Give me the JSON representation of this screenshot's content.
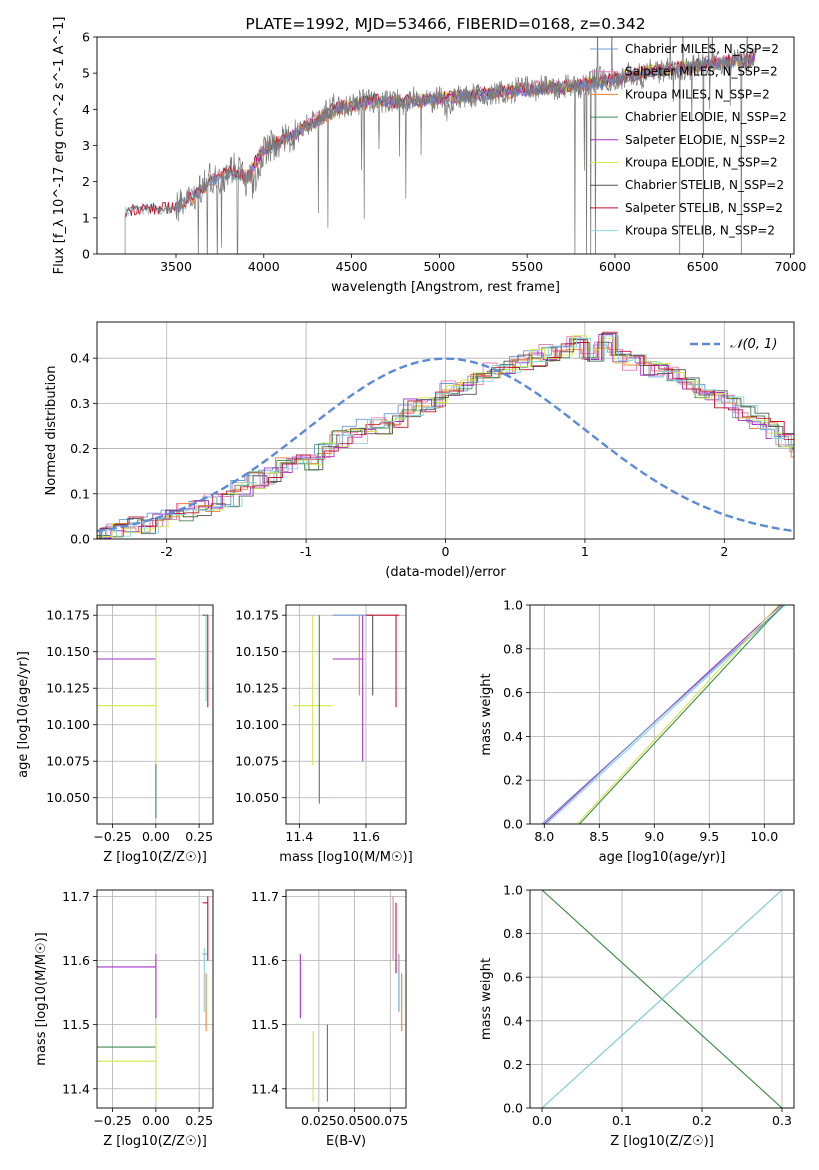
{
  "colors": {
    "chabrier_miles": "#6f9bd6",
    "salpeter_miles": "#e57ab8",
    "kroupa_miles": "#f07f2e",
    "chabrier_elodie": "#3d8a57",
    "salpeter_elodie": "#a331c9",
    "kroupa_elodie": "#d2e84a",
    "chabrier_stelib": "#555555",
    "salpeter_stelib": "#c0142c",
    "kroupa_stelib": "#87d4da",
    "normal_curve": "#5b8bd8",
    "grid": "#b0b0b0"
  },
  "chart_data": [
    {
      "id": "spectrum",
      "type": "line",
      "title": "PLATE=1992, MJD=53466, FIBERID=0168, z=0.342",
      "xlabel": "wavelength [Angstrom, rest frame]",
      "ylabel": "Flux [f_λ 10^-17 erg cm^-2 s^-1 A^-1]",
      "xlim": [
        3050,
        7020
      ],
      "ylim": [
        0,
        6
      ],
      "xticks": [
        3500,
        4000,
        4500,
        5000,
        5500,
        6000,
        6500,
        7000
      ],
      "yticks": [
        0,
        1,
        2,
        3,
        4,
        5,
        6
      ],
      "grid": false,
      "legend_position": "top-right",
      "legend": [
        {
          "key": "chabrier_miles",
          "label": "Chabrier MILES, N_SSP=2"
        },
        {
          "key": "salpeter_miles",
          "label": "Salpeter MILES, N_SSP=2"
        },
        {
          "key": "kroupa_miles",
          "label": "Kroupa MILES, N_SSP=2"
        },
        {
          "key": "chabrier_elodie",
          "label": "Chabrier ELODIE, N_SSP=2"
        },
        {
          "key": "salpeter_elodie",
          "label": "Salpeter ELODIE, N_SSP=2"
        },
        {
          "key": "kroupa_elodie",
          "label": "Kroupa ELODIE, N_SSP=2"
        },
        {
          "key": "chabrier_stelib",
          "label": "Chabrier STELIB, N_SSP=2"
        },
        {
          "key": "salpeter_stelib",
          "label": "Salpeter STELIB, N_SSP=2"
        },
        {
          "key": "kroupa_stelib",
          "label": "Kroupa STELIB, N_SSP=2"
        }
      ],
      "data_series": {
        "color_key": "chabrier_stelib",
        "x": [
          3210,
          3230,
          3260,
          3300,
          3350,
          3400,
          3450,
          3500,
          3550,
          3600,
          3650,
          3700,
          3750,
          3800,
          3850,
          3900,
          3950,
          4000,
          4050,
          4100,
          4150,
          4200,
          4250,
          4300,
          4350,
          4400,
          4450,
          4500,
          4550,
          4600,
          4650,
          4700,
          4750,
          4800,
          4850,
          4900,
          4950,
          5000,
          5050,
          5100,
          5150,
          5200,
          5250,
          5300,
          5350,
          5400,
          5450,
          5500,
          5550,
          5600,
          5650,
          5700,
          5750,
          5800,
          5850,
          5900,
          5950,
          6000,
          6050,
          6100,
          6150,
          6200,
          6250,
          6300,
          6350,
          6400,
          6450,
          6500,
          6550,
          6600,
          6650,
          6700,
          6750,
          6800
        ],
        "y": [
          1.05,
          1.25,
          1.3,
          1.25,
          1.3,
          1.25,
          1.2,
          1.3,
          1.4,
          1.6,
          1.9,
          2.1,
          2.0,
          2.3,
          2.5,
          2.0,
          1.9,
          2.9,
          3.0,
          3.1,
          3.2,
          3.4,
          3.6,
          3.7,
          3.9,
          4.1,
          4.0,
          4.1,
          4.2,
          4.3,
          4.1,
          4.2,
          4.3,
          4.1,
          4.3,
          4.2,
          4.2,
          4.3,
          4.1,
          4.4,
          4.3,
          4.4,
          4.3,
          4.4,
          4.5,
          4.4,
          4.6,
          4.6,
          4.5,
          4.7,
          4.5,
          4.6,
          4.7,
          4.6,
          4.7,
          4.9,
          4.8,
          4.8,
          4.9,
          5.0,
          4.9,
          5.1,
          5.0,
          5.2,
          5.1,
          5.1,
          5.2,
          5.3,
          5.2,
          5.3,
          5.2,
          5.4,
          5.3,
          5.4
        ]
      },
      "model_series": {
        "color_key": "kroupa_stelib",
        "x": [
          3210,
          3300,
          3400,
          3500,
          3600,
          3700,
          3800,
          3900,
          4000,
          4100,
          4200,
          4300,
          4400,
          4500,
          4600,
          4700,
          4800,
          4900,
          5000,
          5100,
          5200,
          5300,
          5400,
          5500,
          5600,
          5700,
          5800,
          5900,
          6000,
          6100,
          6200,
          6300,
          6400,
          6500,
          6600,
          6700,
          6800
        ],
        "y": [
          1.15,
          1.25,
          1.2,
          1.3,
          1.6,
          2.0,
          2.3,
          2.1,
          2.9,
          3.1,
          3.4,
          3.7,
          4.0,
          4.1,
          4.25,
          4.2,
          4.2,
          4.25,
          4.3,
          4.35,
          4.4,
          4.45,
          4.5,
          4.55,
          4.6,
          4.6,
          4.65,
          4.75,
          4.85,
          4.95,
          5.05,
          5.1,
          5.15,
          5.25,
          5.3,
          5.35,
          5.4
        ]
      }
    },
    {
      "id": "residuals",
      "type": "line",
      "xlabel": "(data-model)/error",
      "ylabel": "Normed distribution",
      "xlim": [
        -2.5,
        2.5
      ],
      "ylim": [
        0,
        0.48
      ],
      "xticks": [
        -2,
        -1,
        0,
        1,
        2
      ],
      "yticks": [
        0.0,
        0.1,
        0.2,
        0.3,
        0.4
      ],
      "grid": true,
      "legend_position": "top-right",
      "legend": [
        {
          "key": "normal_curve",
          "label": "𝒩(0, 1)"
        }
      ],
      "curve": {
        "name": "𝒩(0, 1)",
        "mean": 0,
        "sigma": 1
      },
      "bin_width": 0.1,
      "bins_x_start": -2.5,
      "hist_values": [
        0.02,
        0.02,
        0.03,
        0.03,
        0.04,
        0.05,
        0.06,
        0.07,
        0.08,
        0.09,
        0.11,
        0.13,
        0.14,
        0.16,
        0.17,
        0.17,
        0.2,
        0.22,
        0.23,
        0.25,
        0.25,
        0.26,
        0.29,
        0.3,
        0.31,
        0.33,
        0.34,
        0.36,
        0.37,
        0.38,
        0.39,
        0.4,
        0.41,
        0.42,
        0.43,
        0.41,
        0.44,
        0.4,
        0.39,
        0.38,
        0.37,
        0.36,
        0.35,
        0.33,
        0.31,
        0.3,
        0.28,
        0.26,
        0.24,
        0.22,
        0.19,
        0.17,
        0.15,
        0.13,
        0.11,
        0.09,
        0.08,
        0.06,
        0.05,
        0.04,
        0.04,
        0.03,
        0.02
      ]
    },
    {
      "id": "age_vs_Z",
      "type": "scatter",
      "xlabel": "Z [log10(Z/Z☉)]",
      "ylabel": "age  [log10(age/yr)]",
      "xlim": [
        -0.34,
        0.33
      ],
      "ylim": [
        10.032,
        10.182
      ],
      "xticks": [
        -0.25,
        0.0,
        0.25
      ],
      "xtick_labels": [
        "−0.25",
        "0.00",
        "0.25"
      ],
      "yticks": [
        10.05,
        10.075,
        10.1,
        10.125,
        10.15,
        10.175
      ],
      "ytick_labels": [
        "10.050",
        "10.075",
        "10.100",
        "10.125",
        "10.150",
        "10.175"
      ],
      "grid": true,
      "points": [
        {
          "key": "salpeter_elodie",
          "x": [
            -0.34,
            0.0
          ],
          "y": [
            10.145,
            10.145
          ]
        },
        {
          "key": "kroupa_elodie",
          "x": [
            -0.34,
            0.0
          ],
          "y": [
            10.113,
            10.113
          ]
        },
        {
          "key": "kroupa_elodie",
          "x": [
            0.0,
            0.0
          ],
          "y": [
            10.07,
            10.175
          ]
        },
        {
          "key": "chabrier_elodie",
          "x": [
            0.0,
            0.0
          ],
          "y": [
            10.036,
            10.073
          ]
        },
        {
          "key": "chabrier_stelib",
          "x": [
            0.27,
            0.3
          ],
          "y": [
            10.175,
            10.175
          ]
        },
        {
          "key": "salpeter_stelib",
          "x": [
            0.3,
            0.3
          ],
          "y": [
            10.112,
            10.175
          ]
        },
        {
          "key": "kroupa_stelib",
          "x": [
            0.29,
            0.29
          ],
          "y": [
            10.116,
            10.175
          ]
        }
      ]
    },
    {
      "id": "age_vs_mass",
      "type": "scatter",
      "xlabel": "mass [log10(M/M☉)]",
      "xlim": [
        11.36,
        11.72
      ],
      "ylim": [
        10.032,
        10.182
      ],
      "xticks": [
        11.4,
        11.6
      ],
      "xtick_labels": [
        "11.4",
        "11.6"
      ],
      "yticks": [
        10.05,
        10.075,
        10.1,
        10.125,
        10.15,
        10.175
      ],
      "ytick_labels": [
        "10.050",
        "10.075",
        "10.100",
        "10.125",
        "10.150",
        "10.175"
      ],
      "grid": true,
      "points": [
        {
          "key": "kroupa_elodie",
          "x": [
            11.38,
            11.5
          ],
          "y": [
            10.113,
            10.113
          ]
        },
        {
          "key": "chabrier_elodie",
          "x": [
            11.46,
            11.46
          ],
          "y": [
            10.046,
            10.175
          ]
        },
        {
          "key": "kroupa_elodie",
          "x": [
            11.44,
            11.44
          ],
          "y": [
            10.072,
            10.175
          ]
        },
        {
          "key": "salpeter_elodie",
          "x": [
            11.5,
            11.59
          ],
          "y": [
            10.145,
            10.145
          ]
        },
        {
          "key": "salpeter_elodie",
          "x": [
            11.59,
            11.59
          ],
          "y": [
            10.075,
            10.175
          ]
        },
        {
          "key": "chabrier_miles",
          "x": [
            11.5,
            11.62
          ],
          "y": [
            10.175,
            10.175
          ]
        },
        {
          "key": "kroupa_miles",
          "x": [
            11.58,
            11.58
          ],
          "y": [
            10.12,
            10.175
          ]
        },
        {
          "key": "salpeter_stelib",
          "x": [
            11.6,
            11.7
          ],
          "y": [
            10.175,
            10.175
          ]
        },
        {
          "key": "salpeter_stelib",
          "x": [
            11.69,
            11.69
          ],
          "y": [
            10.112,
            10.175
          ]
        },
        {
          "key": "chabrier_stelib",
          "x": [
            11.62,
            11.62
          ],
          "y": [
            10.12,
            10.175
          ]
        }
      ]
    },
    {
      "id": "mass_weight_vs_age",
      "type": "line",
      "xlabel": "age  [log10(age/yr)]",
      "ylabel": "mass weight",
      "xlim": [
        7.87,
        10.27
      ],
      "ylim": [
        0,
        1
      ],
      "xticks": [
        8.0,
        8.5,
        9.0,
        9.5,
        10.0
      ],
      "yticks": [
        0.0,
        0.2,
        0.4,
        0.6,
        0.8,
        1.0
      ],
      "grid": true,
      "lines": [
        {
          "key": "salpeter_elodie",
          "x": [
            8.0,
            10.15
          ],
          "y": [
            0.0,
            1.0
          ]
        },
        {
          "key": "chabrier_miles",
          "x": [
            7.98,
            10.18
          ],
          "y": [
            0.0,
            1.0
          ]
        },
        {
          "key": "kroupa_stelib",
          "x": [
            8.02,
            10.19
          ],
          "y": [
            0.0,
            1.0
          ]
        },
        {
          "key": "kroupa_elodie",
          "x": [
            8.3,
            10.13
          ],
          "y": [
            0.0,
            1.0
          ]
        },
        {
          "key": "chabrier_elodie",
          "x": [
            8.32,
            10.17
          ],
          "y": [
            0.0,
            1.0
          ]
        }
      ]
    },
    {
      "id": "mass_vs_Z",
      "type": "scatter",
      "xlabel": "Z [log10(Z/Z☉)]",
      "ylabel": "mass [log10(M/M☉)]",
      "xlim": [
        -0.34,
        0.33
      ],
      "ylim": [
        11.37,
        11.71
      ],
      "xticks": [
        -0.25,
        0.0,
        0.25
      ],
      "xtick_labels": [
        "−0.25",
        "0.00",
        "0.25"
      ],
      "yticks": [
        11.4,
        11.5,
        11.6,
        11.7
      ],
      "ytick_labels": [
        "11.4",
        "11.5",
        "11.6",
        "11.7"
      ],
      "grid": true,
      "points": [
        {
          "key": "salpeter_elodie",
          "x": [
            -0.34,
            0.0
          ],
          "y": [
            11.59,
            11.59
          ]
        },
        {
          "key": "salpeter_elodie",
          "x": [
            0.0,
            0.0
          ],
          "y": [
            11.51,
            11.61
          ]
        },
        {
          "key": "chabrier_elodie",
          "x": [
            -0.34,
            0.0
          ],
          "y": [
            11.465,
            11.465
          ]
        },
        {
          "key": "kroupa_elodie",
          "x": [
            -0.34,
            0.0
          ],
          "y": [
            11.443,
            11.443
          ]
        },
        {
          "key": "kroupa_elodie",
          "x": [
            0.0,
            0.0
          ],
          "y": [
            11.38,
            11.5
          ]
        },
        {
          "key": "salpeter_stelib",
          "x": [
            0.27,
            0.3
          ],
          "y": [
            11.69,
            11.69
          ]
        },
        {
          "key": "salpeter_stelib",
          "x": [
            0.3,
            0.3
          ],
          "y": [
            11.6,
            11.7
          ]
        },
        {
          "key": "chabrier_miles",
          "x": [
            0.27,
            0.3
          ],
          "y": [
            11.61,
            11.61
          ]
        },
        {
          "key": "kroupa_miles",
          "x": [
            0.29,
            0.29
          ],
          "y": [
            11.49,
            11.58
          ]
        },
        {
          "key": "kroupa_stelib",
          "x": [
            0.28,
            0.28
          ],
          "y": [
            11.52,
            11.62
          ]
        }
      ]
    },
    {
      "id": "mass_vs_ebv",
      "type": "scatter",
      "xlabel": "E(B-V)",
      "xlim": [
        0.002,
        0.086
      ],
      "ylim": [
        11.37,
        11.71
      ],
      "xticks": [
        0.025,
        0.05,
        0.075
      ],
      "xtick_labels": [
        "0.025",
        "0.050",
        "0.075"
      ],
      "yticks": [
        11.4,
        11.5,
        11.6,
        11.7
      ],
      "ytick_labels": [
        "11.4",
        "11.5",
        "11.6",
        "11.7"
      ],
      "grid": true,
      "points": [
        {
          "key": "salpeter_elodie",
          "x": [
            0.012,
            0.012
          ],
          "y": [
            11.51,
            11.61
          ]
        },
        {
          "key": "kroupa_elodie",
          "x": [
            0.021,
            0.021
          ],
          "y": [
            11.38,
            11.49
          ]
        },
        {
          "key": "chabrier_elodie",
          "x": [
            0.031,
            0.031
          ],
          "y": [
            11.38,
            11.5
          ]
        },
        {
          "key": "salpeter_miles",
          "x": [
            0.077,
            0.077
          ],
          "y": [
            11.6,
            11.7
          ]
        },
        {
          "key": "salpeter_stelib",
          "x": [
            0.079,
            0.079
          ],
          "y": [
            11.58,
            11.69
          ]
        },
        {
          "key": "chabrier_miles",
          "x": [
            0.081,
            0.081
          ],
          "y": [
            11.52,
            11.61
          ]
        },
        {
          "key": "kroupa_miles",
          "x": [
            0.083,
            0.083
          ],
          "y": [
            11.49,
            11.58
          ]
        }
      ]
    },
    {
      "id": "mass_weight_vs_Z",
      "type": "line",
      "xlabel": "Z [log10(Z/Z☉)]",
      "ylabel": "mass weight",
      "xlim": [
        -0.015,
        0.315
      ],
      "ylim": [
        0,
        1
      ],
      "xticks": [
        0.0,
        0.1,
        0.2,
        0.3
      ],
      "yticks": [
        0.0,
        0.2,
        0.4,
        0.6,
        0.8,
        1.0
      ],
      "grid": true,
      "lines": [
        {
          "key": "kroupa_elodie",
          "x": [
            0.0,
            0.3
          ],
          "y": [
            1.0,
            0.0
          ]
        },
        {
          "key": "chabrier_elodie",
          "x": [
            0.0,
            0.3
          ],
          "y": [
            1.0,
            0.0
          ]
        },
        {
          "key": "chabrier_miles",
          "x": [
            0.0,
            0.3
          ],
          "y": [
            0.0,
            1.0
          ]
        },
        {
          "key": "kroupa_stelib",
          "x": [
            0.0,
            0.3
          ],
          "y": [
            0.0,
            1.0
          ]
        }
      ]
    }
  ]
}
